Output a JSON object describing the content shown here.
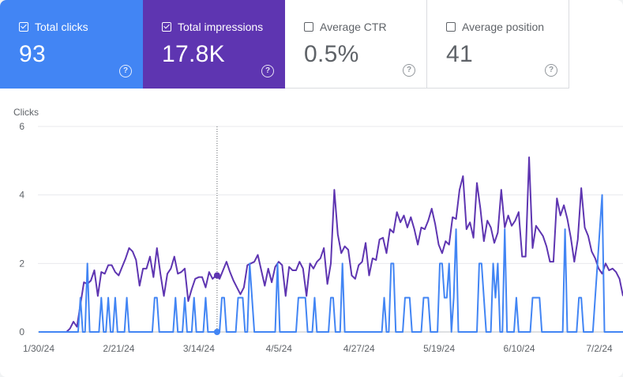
{
  "metrics": [
    {
      "label": "Total clicks",
      "value": "93",
      "checked": true,
      "color": "#4285f4"
    },
    {
      "label": "Total impressions",
      "value": "17.8K",
      "checked": true,
      "color": "#5e35b1"
    },
    {
      "label": "Average CTR",
      "value": "0.5%",
      "checked": false
    },
    {
      "label": "Average position",
      "value": "41",
      "checked": false
    }
  ],
  "chart_data": {
    "type": "line",
    "ylabel": "Clicks",
    "ylim": [
      0,
      6
    ],
    "yticks": [
      "0",
      "2",
      "4",
      "6"
    ],
    "x_tick_labels": [
      "1/30/24",
      "2/21/24",
      "3/14/24",
      "4/5/24",
      "4/27/24",
      "5/19/24",
      "6/10/24",
      "7/2/24"
    ],
    "x_start": "1/30/24",
    "x_end": "7/2/24",
    "grid": true,
    "hover_date": "3/19/24",
    "series": [
      {
        "color": "#5e35b1",
        "values": [
          0,
          0,
          0,
          0,
          0,
          0,
          0,
          0,
          0,
          0.1,
          0.3,
          0.15,
          0.8,
          1.45,
          1.4,
          1.5,
          1.8,
          1.05,
          1.75,
          1.7,
          1.95,
          1.95,
          1.75,
          1.65,
          1.9,
          2.15,
          2.45,
          2.35,
          2.1,
          1.35,
          1.85,
          1.85,
          2.2,
          1.6,
          2.45,
          1.7,
          1.05,
          1.7,
          1.85,
          2.2,
          1.7,
          1.75,
          1.85,
          0.9,
          1.25,
          1.55,
          1.6,
          1.6,
          1.3,
          1.75,
          1.55,
          1.65,
          1.55,
          1.8,
          2.05,
          1.75,
          1.5,
          1.3,
          1.1,
          1.3,
          1.95,
          2.0,
          2.05,
          2.25,
          1.8,
          1.35,
          1.85,
          1.45,
          1.9,
          2.05,
          1.95,
          1.05,
          1.9,
          1.8,
          1.8,
          2.05,
          1.85,
          1.05,
          2.0,
          1.85,
          2.05,
          2.15,
          2.45,
          1.4,
          2.0,
          4.15,
          2.85,
          2.3,
          2.5,
          2.4,
          1.65,
          1.55,
          1.95,
          2.05,
          2.6,
          1.65,
          2.15,
          2.1,
          2.7,
          2.75,
          2.3,
          3.0,
          2.9,
          3.5,
          3.2,
          3.4,
          3.05,
          3.35,
          3.0,
          2.55,
          3.05,
          3.0,
          3.25,
          3.6,
          3.15,
          2.55,
          2.3,
          2.65,
          2.55,
          3.35,
          3.3,
          4.15,
          4.55,
          3.0,
          3.2,
          2.75,
          4.35,
          3.6,
          2.65,
          3.25,
          3.05,
          2.6,
          2.9,
          4.15,
          3.05,
          3.4,
          3.1,
          3.25,
          3.5,
          2.2,
          2.2,
          5.1,
          2.45,
          3.1,
          2.95,
          2.8,
          2.5,
          2.05,
          2.05,
          3.9,
          3.4,
          3.7,
          3.3,
          2.75,
          2.05,
          2.7,
          4.2,
          3.05,
          2.8,
          2.35,
          2.15,
          1.85,
          1.7,
          2.0,
          1.8,
          1.85,
          1.75,
          1.55,
          1.05
        ]
      },
      {
        "color": "#4285f4",
        "values": [
          0,
          0,
          0,
          0,
          0,
          0,
          0,
          0,
          0,
          0,
          0,
          0,
          0,
          0,
          0,
          0,
          0,
          0,
          1,
          0,
          0,
          2,
          0,
          0,
          0,
          0,
          0,
          1,
          0,
          0,
          1,
          0,
          0,
          1,
          0,
          0,
          0,
          0,
          1,
          0,
          0,
          0,
          0,
          0,
          0,
          0,
          0,
          0,
          0,
          0,
          1,
          1,
          0,
          0,
          0,
          0,
          0,
          0,
          0,
          1,
          0,
          0,
          0,
          1,
          0,
          0,
          0,
          1,
          0,
          0,
          0,
          0,
          1,
          0,
          0,
          0,
          0,
          0,
          0,
          1,
          1,
          0,
          0,
          0,
          0,
          0,
          1,
          1,
          1,
          0,
          0,
          2,
          1,
          0,
          0,
          0,
          0,
          0,
          0,
          0,
          0,
          0,
          0,
          2,
          0,
          0,
          0,
          0,
          0,
          0,
          0,
          0,
          1,
          1,
          1,
          1,
          0,
          0,
          0,
          1,
          0,
          0,
          0,
          0,
          0,
          0,
          1,
          1,
          0,
          0,
          0,
          2,
          0,
          0,
          0,
          0,
          0,
          0,
          0,
          0,
          0,
          0,
          0,
          0,
          0,
          0,
          0,
          0,
          0,
          1,
          0,
          0,
          2,
          2,
          0,
          0,
          0,
          0,
          1,
          1,
          1,
          0,
          0,
          0,
          0,
          0,
          1,
          1,
          1,
          0,
          0,
          0,
          0,
          2,
          2,
          1,
          1,
          2,
          0,
          1,
          3,
          0,
          0,
          0,
          0,
          0,
          0,
          0,
          0,
          0,
          2,
          2,
          1,
          0,
          0,
          0,
          2,
          1,
          2,
          0,
          0,
          3,
          0,
          0,
          0,
          0,
          1,
          0,
          0,
          0,
          0,
          0,
          0,
          1,
          1,
          1,
          1,
          0,
          0,
          0,
          0,
          0,
          0,
          0,
          0,
          0,
          0,
          3,
          0,
          0,
          0,
          0,
          0,
          1,
          1,
          0,
          0,
          0,
          0,
          0,
          1,
          2,
          3,
          4,
          0,
          0,
          0,
          0,
          0,
          0,
          0,
          0,
          0
        ]
      }
    ]
  }
}
